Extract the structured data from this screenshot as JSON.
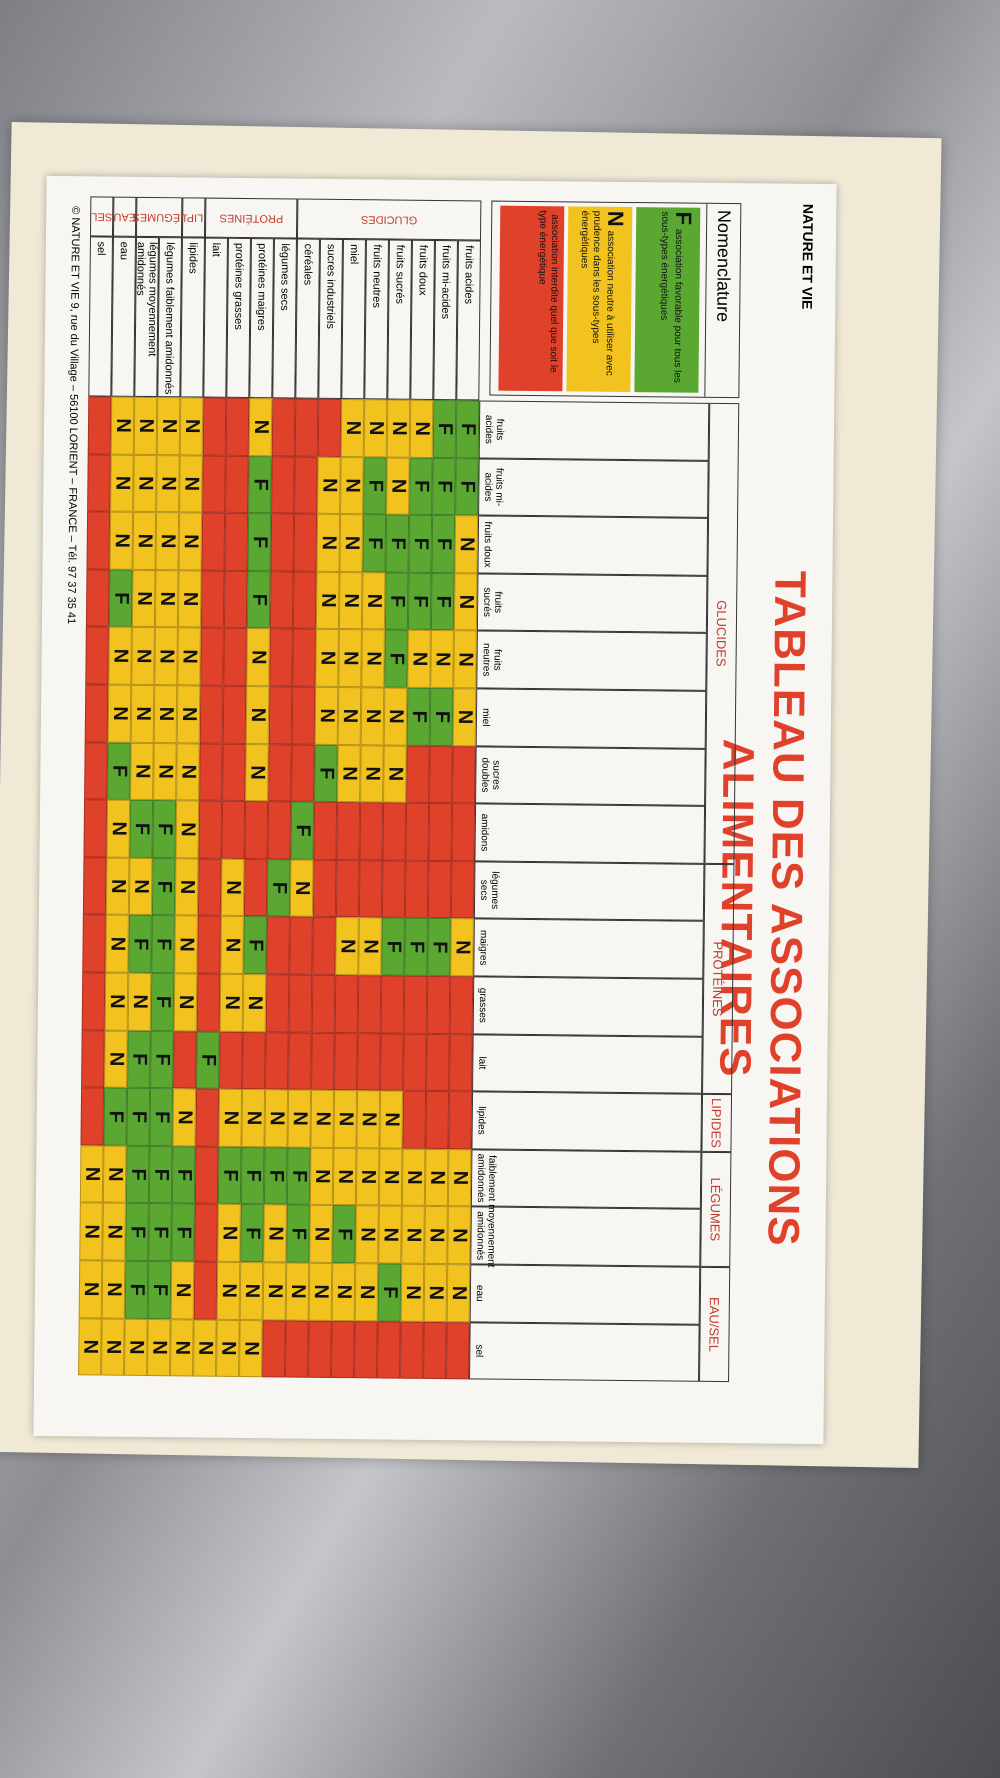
{
  "header": {
    "brand": "NATURE ET VIE",
    "title": "TABLEAU DES ASSOCIATIONS ALIMENTAIRES"
  },
  "legend": {
    "title": "Nomenclature",
    "items": [
      {
        "key": "F",
        "text": "association favorable pour tous les sous-types énergétiques",
        "color": "#5aa832"
      },
      {
        "key": "N",
        "text": "association neutre à utiliser avec prudence dans les sous-types énergétiques",
        "color": "#f2c21f"
      },
      {
        "text": "association interdite quel que soit le type énergétique",
        "color": "#e0412b"
      }
    ]
  },
  "column_groups": [
    {
      "label": "GLUCIDES",
      "columns": [
        "fruits acides",
        "fruits mi-acides",
        "fruits doux",
        "fruits sucrés",
        "fruits neutres",
        "miel",
        "sucres doubles",
        "amidons"
      ]
    },
    {
      "label": "PROTÉINES",
      "columns": [
        "légumes secs",
        "maigres",
        "grasses",
        "lait"
      ]
    },
    {
      "label": "LIPIDES",
      "columns": [
        "lipides"
      ]
    },
    {
      "label": "LÉGUMES",
      "columns": [
        "faiblement amidonnés",
        "moyennement amidonnés"
      ]
    },
    {
      "label": "EAU/SEL",
      "columns": [
        "eau",
        "sel"
      ]
    }
  ],
  "row_groups": [
    {
      "label": "GLUCIDES",
      "rows": [
        "fruits acides",
        "fruits mi-acides",
        "fruits doux",
        "fruits sucrés",
        "fruits neutres",
        "miel",
        "sucres industriels",
        "céréales"
      ]
    },
    {
      "label": "PROTÉINES",
      "rows": [
        "légumes secs",
        "protéines maigres",
        "protéines grasses",
        "lait"
      ]
    },
    {
      "label": "LIP.",
      "rows": [
        "lipides"
      ]
    },
    {
      "label": "LÉGUMES",
      "rows": [
        "légumes faiblement amidonnés",
        "légumes moyennement amidonnés"
      ]
    },
    {
      "label": "EAU",
      "rows": [
        "eau"
      ]
    },
    {
      "label": "SEL",
      "rows": [
        "sel"
      ]
    }
  ],
  "table": {
    "colors": {
      "F": "#5aa832",
      "N": "#f2c21f",
      "R": "#e0412b"
    },
    "cells": [
      "FFNNNNRRRNRRRNNNR",
      "FFFFNFRRRFRRRNNNR",
      "NFFFNFRRRFRRRNNNR",
      "NNFFFNNRRFRRNNNFR",
      "NFFNNNNRRNRRNNNNR",
      "NNNNNNNRRNRRNNFNR",
      "RNNNNNFRRRRRNNNNR",
      "RRRRRRRFNRRRNFFNR",
      "RRRRRRRRFRRRNFNNR",
      "NFFFNNNRRFNRNFFNN",
      "RRRRRRRRNNNRNFNNN",
      "RRRRRRRRRRRFRRRRN",
      "NNNNNNNNNNNRNFFNN",
      "NNNNNNNFFFFFFFFFN",
      "NNNNNNNFNFNFFFFFN",
      "NNNFNNFNNNNNFNNNN",
      "RRRRRRRRRRRRRNNNN"
    ]
  },
  "footer": {
    "text": "© NATURE ET VIE 9, rue du Village – 56100 LORIENT – FRANCE – Tél. 97 37 35 41"
  }
}
